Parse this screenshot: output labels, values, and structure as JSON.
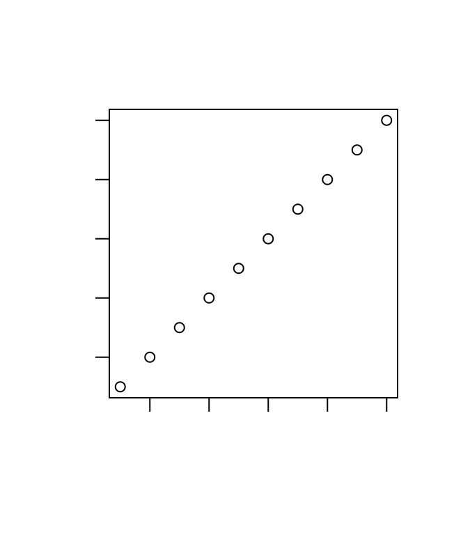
{
  "chart_data": {
    "type": "scatter",
    "title": "\u0004\r\u0006\u000f\u0006\u000e\u0006\u000f \u0006\u0006\u0006\u000f\u0006\u000e\u0007\u0004",
    "xlabel": "\u0004\t\u0006\u000e\u0006\u0004\u0006\u0005\u0007\b",
    "ylabel": "\u0003\u0001\u0003\n\u0003\u0001\u0003\u0000",
    "x": [
      1,
      2,
      3,
      4,
      5,
      6,
      7,
      8,
      9,
      10
    ],
    "y": [
      1,
      2,
      3,
      4,
      5,
      6,
      7,
      8,
      9,
      10
    ],
    "xlim": [
      0.63,
      10.37
    ],
    "ylim": [
      0.63,
      10.37
    ],
    "x_ticks": [
      2,
      4,
      6,
      8,
      10
    ],
    "x_tick_labels": [
      "\u0003\u0002",
      "\u0003\u0004",
      "\u0003\u0006",
      "\u0003\b",
      "\u0003\u0001\u0003\u0000"
    ],
    "y_ticks": [
      2,
      4,
      6,
      8,
      10
    ],
    "y_tick_labels": [
      "\u0003\u0002",
      "\u0003\u0004",
      "\u0003\u0006",
      "\u0003\b",
      "\u0003\u0001\u0003\u0000"
    ],
    "marker": "open-circle",
    "grid": false,
    "colors": {
      "points": "#000000",
      "axes": "#000000",
      "background": "#ffffff"
    }
  }
}
